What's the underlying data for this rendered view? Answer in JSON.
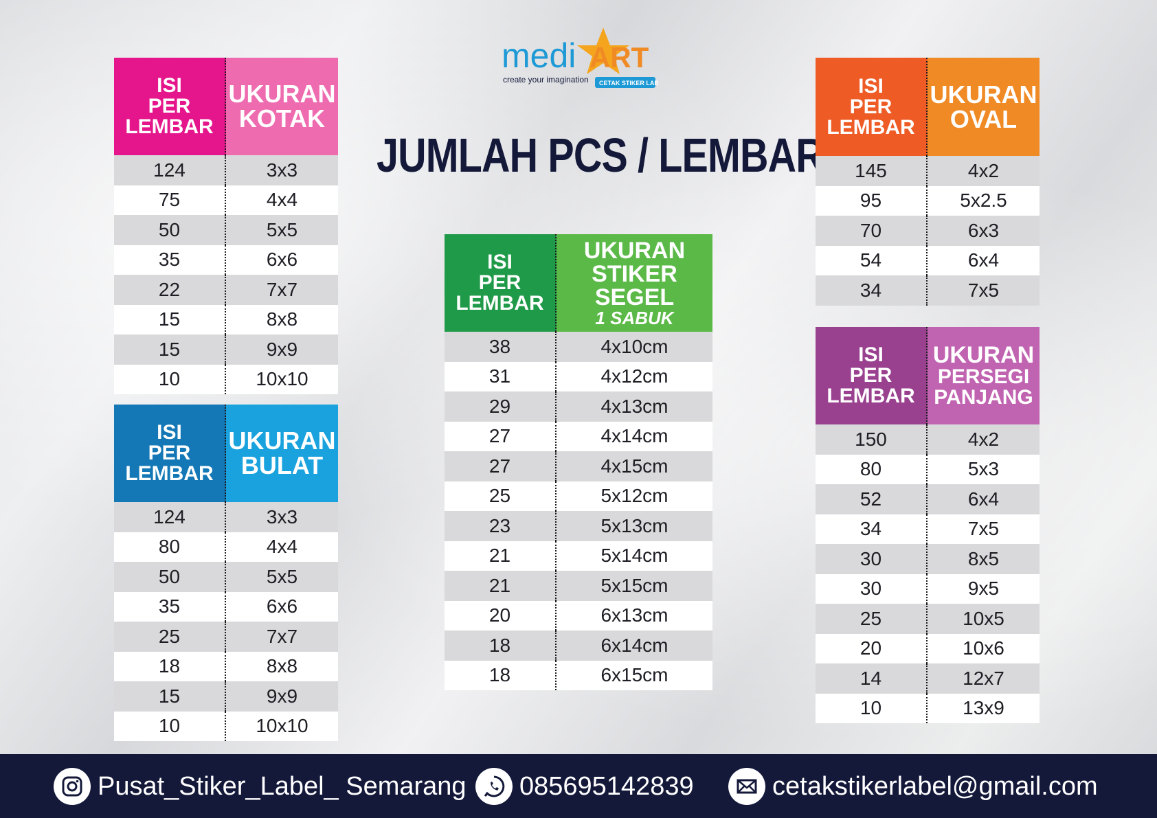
{
  "title": "JUMLAH PCS / LEMBAR",
  "logo": {
    "brand_1": "medi",
    "brand_2": "ART",
    "tagline": "create your imagination",
    "badge": "CETAK STIKER LABEL"
  },
  "colors": {
    "kotak_left": "#e5168b",
    "kotak_right": "#ee6bb0",
    "bulat_left": "#1478b6",
    "bulat_right": "#19a2dd",
    "segel_left": "#1f9a48",
    "segel_right": "#5bb948",
    "oval_left": "#ee5b24",
    "oval_right": "#f08a25",
    "persegi_left": "#99418f",
    "persegi_right": "#c063b0",
    "footer_bg": "#14193a",
    "title": "#14193a"
  },
  "tables": {
    "kotak": {
      "left_header": [
        "ISI",
        "PER",
        "LEMBAR"
      ],
      "right_header": [
        "UKURAN",
        "KOTAK"
      ],
      "rows": [
        [
          "124",
          "3x3"
        ],
        [
          "75",
          "4x4"
        ],
        [
          "50",
          "5x5"
        ],
        [
          "35",
          "6x6"
        ],
        [
          "22",
          "7x7"
        ],
        [
          "15",
          "8x8"
        ],
        [
          "15",
          "9x9"
        ],
        [
          "10",
          "10x10"
        ]
      ]
    },
    "bulat": {
      "left_header": [
        "ISI",
        "PER",
        "LEMBAR"
      ],
      "right_header": [
        "UKURAN",
        "BULAT"
      ],
      "rows": [
        [
          "124",
          "3x3"
        ],
        [
          "80",
          "4x4"
        ],
        [
          "50",
          "5x5"
        ],
        [
          "35",
          "6x6"
        ],
        [
          "25",
          "7x7"
        ],
        [
          "18",
          "8x8"
        ],
        [
          "15",
          "9x9"
        ],
        [
          "10",
          "10x10"
        ]
      ]
    },
    "segel": {
      "left_header": [
        "ISI",
        "PER",
        "LEMBAR"
      ],
      "right_header": [
        "UKURAN",
        "STIKER SEGEL"
      ],
      "right_sub": "1 SABUK",
      "rows": [
        [
          "38",
          "4x10cm"
        ],
        [
          "31",
          "4x12cm"
        ],
        [
          "29",
          "4x13cm"
        ],
        [
          "27",
          "4x14cm"
        ],
        [
          "27",
          "4x15cm"
        ],
        [
          "25",
          "5x12cm"
        ],
        [
          "23",
          "5x13cm"
        ],
        [
          "21",
          "5x14cm"
        ],
        [
          "21",
          "5x15cm"
        ],
        [
          "20",
          "6x13cm"
        ],
        [
          "18",
          "6x14cm"
        ],
        [
          "18",
          "6x15cm"
        ]
      ]
    },
    "oval": {
      "left_header": [
        "ISI",
        "PER",
        "LEMBAR"
      ],
      "right_header": [
        "UKURAN",
        "OVAL"
      ],
      "rows": [
        [
          "145",
          "4x2"
        ],
        [
          "95",
          "5x2.5"
        ],
        [
          "70",
          "6x3"
        ],
        [
          "54",
          "6x4"
        ],
        [
          "34",
          "7x5"
        ]
      ]
    },
    "persegi": {
      "left_header": [
        "ISI",
        "PER",
        "LEMBAR"
      ],
      "right_header": [
        "UKURAN",
        "PERSEGI",
        "PANJANG"
      ],
      "rows": [
        [
          "150",
          "4x2"
        ],
        [
          "80",
          "5x3"
        ],
        [
          "52",
          "6x4"
        ],
        [
          "34",
          "7x5"
        ],
        [
          "30",
          "8x5"
        ],
        [
          "30",
          "9x5"
        ],
        [
          "25",
          "10x5"
        ],
        [
          "20",
          "10x6"
        ],
        [
          "14",
          "12x7"
        ],
        [
          "10",
          "13x9"
        ]
      ]
    }
  },
  "footer": {
    "instagram": "Pusat_Stiker_Label_ Semarang",
    "whatsapp": "085695142839",
    "email": "cetakstikerlabel@gmail.com",
    "icons": [
      "instagram-icon",
      "whatsapp-icon",
      "mail-icon"
    ]
  }
}
